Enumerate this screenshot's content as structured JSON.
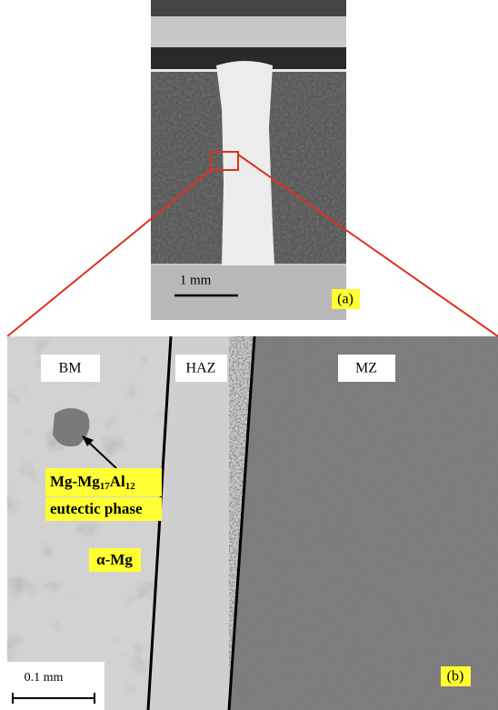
{
  "panel_a": {
    "scale_bar": "1 mm",
    "label": "(a)"
  },
  "panel_b": {
    "zones": [
      "BM",
      "HAZ",
      "MZ"
    ],
    "eutectic": {
      "parts": [
        "Mg-Mg",
        "17",
        "Al",
        "12"
      ],
      "line2": "eutectic phase"
    },
    "alpha": "α-Mg",
    "scale_bar": "0.1 mm",
    "label": "(b)"
  }
}
